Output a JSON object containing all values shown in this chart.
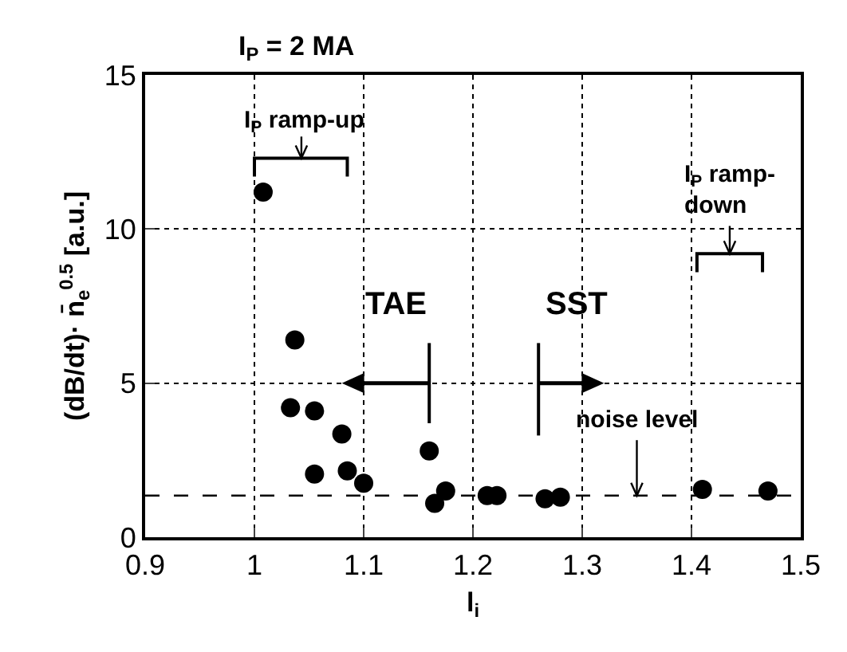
{
  "chart_data": {
    "type": "scatter",
    "title": "I$_{P}$ = 2 MA",
    "xlabel": "l$_{i}$",
    "ylabel": "(dB/dt)· n̄$_{e}$$^{0.5}$ [a.u.]",
    "x": [
      1.008,
      1.037,
      1.033,
      1.055,
      1.08,
      1.055,
      1.085,
      1.1,
      1.16,
      1.165,
      1.175,
      1.213,
      1.222,
      1.266,
      1.28,
      1.41,
      1.47
    ],
    "values": [
      11.2,
      6.4,
      4.2,
      4.1,
      3.35,
      2.05,
      2.15,
      1.75,
      2.8,
      1.1,
      1.5,
      1.35,
      1.35,
      1.25,
      1.3,
      1.55,
      1.5
    ],
    "color": "#000000",
    "marker": "circle",
    "xlim": [
      0.9,
      1.5
    ],
    "xticks": [
      0.9,
      1,
      1.1,
      1.2,
      1.3,
      1.4,
      1.5
    ],
    "ylim": [
      0,
      15
    ],
    "yticks": [
      0,
      5,
      10,
      15
    ],
    "grid": true,
    "ref_lines": [
      {
        "axis": "y",
        "value": 1.35,
        "label": "noise level",
        "line_style": "dashed",
        "color": "#000000"
      }
    ],
    "annotations": [
      "I$_{P}$ ramp-up",
      "TAE",
      "SST",
      "I$_{P}$ ramp-\ndown"
    ]
  }
}
